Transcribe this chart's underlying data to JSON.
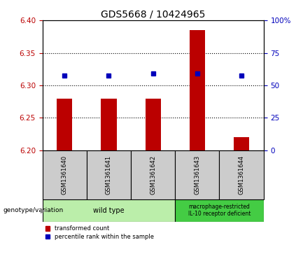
{
  "title": "GDS5668 / 10424965",
  "samples": [
    "GSM1361640",
    "GSM1361641",
    "GSM1361642",
    "GSM1361643",
    "GSM1361644"
  ],
  "bar_values": [
    6.28,
    6.28,
    6.28,
    6.385,
    6.22
  ],
  "percentile_values": [
    6.315,
    6.315,
    6.318,
    6.318,
    6.315
  ],
  "ylim_left": [
    6.2,
    6.4
  ],
  "ylim_right": [
    0,
    100
  ],
  "yticks_left": [
    6.2,
    6.25,
    6.3,
    6.35,
    6.4
  ],
  "yticks_right": [
    0,
    25,
    50,
    75,
    100
  ],
  "bar_color": "#bb0000",
  "dot_color": "#0000bb",
  "bg_color": "#ffffff",
  "plot_bg": "#ffffff",
  "group1_label": "wild type",
  "group1_indices": [
    0,
    1,
    2
  ],
  "group2_label": "macrophage-restricted\nIL-10 receptor deficient",
  "group2_indices": [
    3,
    4
  ],
  "group1_bg": "#bbeeaa",
  "group2_bg": "#44cc44",
  "sample_bg": "#cccccc",
  "legend_red_label": "transformed count",
  "legend_blue_label": "percentile rank within the sample",
  "bottom_label": "genotype/variation",
  "title_fontsize": 10,
  "tick_fontsize": 7.5,
  "label_fontsize": 7,
  "bar_width": 0.35
}
